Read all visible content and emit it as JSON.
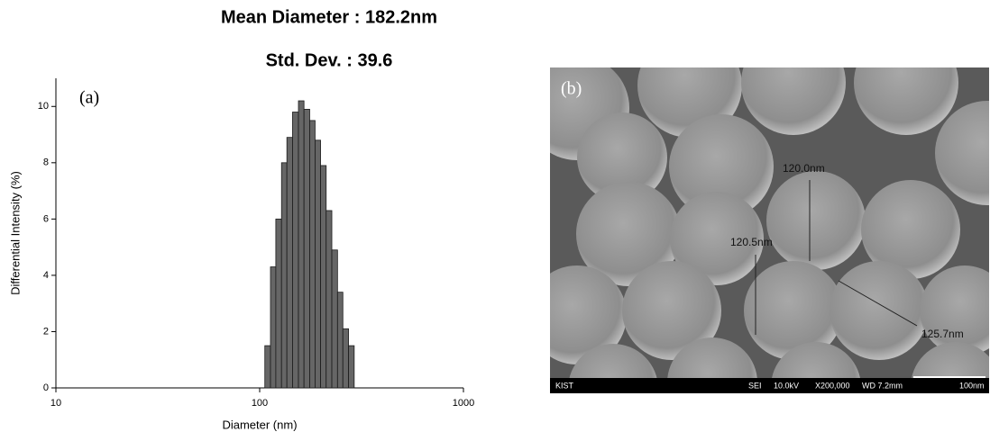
{
  "chart_data": {
    "type": "histogram",
    "title": "Mean Diameter : 182.2nm",
    "subtitle": "Std. Dev. : 39.6",
    "panel_label": "(a)",
    "x_label": "Diameter (nm)",
    "y_label": "Differential Intensity (%)",
    "xscale": "log",
    "bins": [
      106,
      113,
      120,
      128,
      136,
      145,
      155,
      165,
      176,
      187,
      199,
      212,
      226,
      241,
      256,
      273,
      291
    ],
    "values": [
      1.5,
      4.3,
      6.0,
      8.0,
      8.9,
      9.8,
      10.2,
      9.9,
      9.5,
      8.8,
      7.9,
      6.3,
      4.9,
      3.4,
      2.1,
      1.5
    ],
    "color": "#666666",
    "xlim": [
      10,
      1000
    ],
    "xticks": [
      10,
      100,
      1000
    ],
    "ylim": [
      0,
      11
    ],
    "yticks": [
      0,
      2,
      4,
      6,
      8,
      10
    ],
    "grid": false
  },
  "sem_image": {
    "panel_label": "(b)",
    "measurements": [
      "120.0nm",
      "120.5nm",
      "125.7nm"
    ],
    "info_bar": [
      "KIST",
      "SEI",
      "10.0kV",
      "X200,000",
      "WD 7.2mm",
      "100nm"
    ]
  }
}
